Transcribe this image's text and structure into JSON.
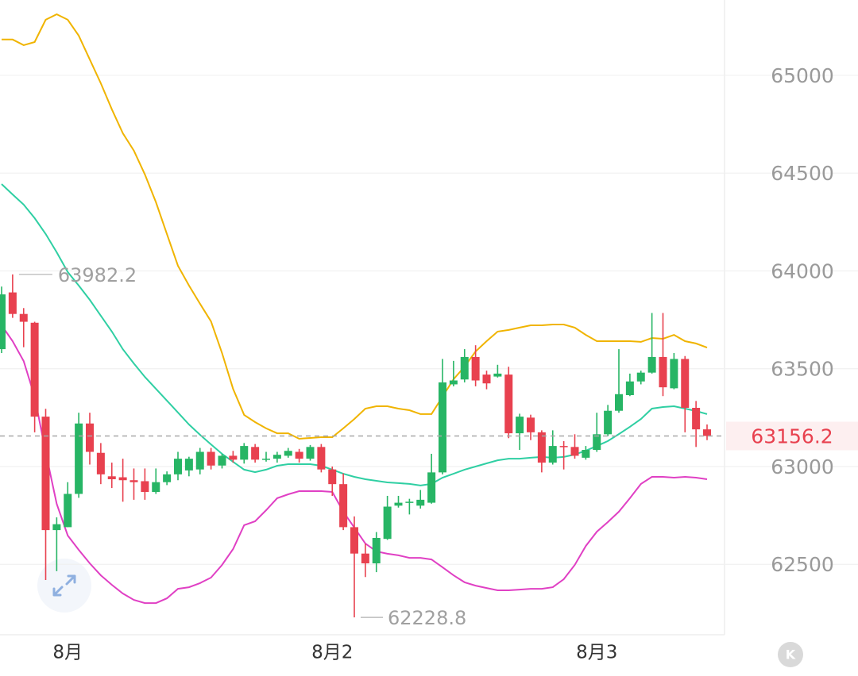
{
  "chart_data": {
    "type": "candlestick",
    "categories": [
      null,
      null,
      null,
      null,
      null,
      null,
      "8月",
      null,
      null,
      null,
      null,
      null,
      null,
      null,
      null,
      null,
      null,
      null,
      null,
      null,
      null,
      null,
      null,
      null,
      null,
      null,
      null,
      null,
      null,
      null,
      "8月2",
      null,
      null,
      null,
      null,
      null,
      null,
      null,
      null,
      null,
      null,
      null,
      null,
      null,
      null,
      null,
      null,
      null,
      null,
      null,
      null,
      null,
      null,
      null,
      "8月3",
      null,
      null,
      null,
      null,
      null,
      null,
      null,
      null,
      null,
      null
    ],
    "open": [
      63600,
      63890,
      63780,
      63735,
      63255,
      62675,
      62690,
      62860,
      63220,
      63070,
      62950,
      62945,
      62930,
      62925,
      62870,
      62920,
      62960,
      62980,
      62985,
      63075,
      63005,
      63055,
      63035,
      63100,
      63035,
      63040,
      63055,
      63075,
      63040,
      63100,
      62985,
      62910,
      62690,
      62555,
      62505,
      62630,
      62800,
      62815,
      62800,
      62815,
      62970,
      63420,
      63445,
      63560,
      63470,
      63460,
      63470,
      63170,
      63250,
      63175,
      63020,
      63105,
      63100,
      63045,
      63085,
      63165,
      63285,
      63365,
      63435,
      63480,
      63560,
      63400,
      63550,
      63300,
      63190
    ],
    "high": [
      63920,
      63982.2,
      63810,
      63740,
      63295,
      62740,
      62920,
      63275,
      63275,
      63120,
      63020,
      63040,
      62990,
      62990,
      62990,
      62975,
      63075,
      63050,
      63095,
      63095,
      63065,
      63080,
      63120,
      63115,
      63075,
      63075,
      63095,
      63090,
      63110,
      63115,
      63000,
      62965,
      62745,
      62605,
      62665,
      62850,
      62850,
      62835,
      62880,
      63065,
      63550,
      63540,
      63600,
      63620,
      63490,
      63520,
      63510,
      63270,
      63265,
      63185,
      63185,
      63130,
      63165,
      63105,
      63275,
      63315,
      63600,
      63475,
      63490,
      63785,
      63785,
      63580,
      63565,
      63335,
      63215
    ],
    "low": [
      63580,
      63760,
      63610,
      63175,
      62420,
      62465,
      62690,
      62840,
      63010,
      62910,
      62890,
      62820,
      62830,
      62830,
      62860,
      62905,
      62930,
      62950,
      62960,
      62985,
      62990,
      63020,
      63015,
      63020,
      63025,
      63020,
      63045,
      63020,
      63030,
      62970,
      62850,
      62675,
      62228.8,
      62435,
      62460,
      62625,
      62790,
      62755,
      62785,
      62810,
      62960,
      63410,
      63430,
      63410,
      63395,
      63455,
      63145,
      63085,
      63135,
      62970,
      63010,
      62985,
      63040,
      63035,
      63075,
      63155,
      63275,
      63360,
      63420,
      63475,
      63360,
      63395,
      63175,
      63100,
      63135
    ],
    "close": [
      63880,
      63780,
      63740,
      63255,
      62675,
      62705,
      62860,
      63220,
      63075,
      62960,
      62935,
      62930,
      62920,
      62870,
      62920,
      62960,
      63040,
      63040,
      63075,
      63005,
      63055,
      63035,
      63105,
      63035,
      63040,
      63060,
      63080,
      63040,
      63100,
      62985,
      62910,
      62690,
      62555,
      62505,
      62635,
      62795,
      62815,
      62820,
      62830,
      62970,
      63430,
      63440,
      63560,
      63440,
      63425,
      63475,
      63170,
      63255,
      63175,
      63020,
      63105,
      63100,
      63055,
      63085,
      63165,
      63285,
      63370,
      63435,
      63480,
      63560,
      63405,
      63550,
      63300,
      63190,
      63156.2
    ],
    "series": [
      {
        "color": "#f0b400",
        "values": [
          65183,
          65183,
          65154,
          65170,
          65284,
          65312,
          65284,
          65203,
          65081,
          64959,
          64826,
          64704,
          64615,
          64493,
          64351,
          64189,
          64026,
          63925,
          63832,
          63742,
          63580,
          63397,
          63264,
          63227,
          63195,
          63170,
          63170,
          63142,
          63146,
          63150,
          63150,
          63195,
          63243,
          63296,
          63308,
          63308,
          63296,
          63288,
          63268,
          63268,
          63357,
          63446,
          63511,
          63588,
          63641,
          63690,
          63698,
          63710,
          63722,
          63722,
          63726,
          63726,
          63710,
          63673,
          63641,
          63641,
          63641,
          63641,
          63637,
          63657,
          63653,
          63673,
          63641,
          63629,
          63608
        ]
      },
      {
        "color": "#2fcfa3",
        "values": [
          64444,
          64391,
          64339,
          64270,
          64189,
          64095,
          63994,
          63925,
          63852,
          63771,
          63690,
          63600,
          63527,
          63458,
          63397,
          63337,
          63276,
          63215,
          63162,
          63113,
          63065,
          63024,
          62984,
          62971,
          62984,
          63004,
          63012,
          63012,
          63012,
          63004,
          62984,
          62963,
          62947,
          62935,
          62927,
          62919,
          62915,
          62911,
          62903,
          62911,
          62943,
          62963,
          62984,
          63000,
          63016,
          63032,
          63040,
          63040,
          63045,
          63049,
          63045,
          63049,
          63061,
          63081,
          63105,
          63130,
          63166,
          63203,
          63243,
          63296,
          63304,
          63308,
          63296,
          63284,
          63268
        ]
      },
      {
        "color": "#e040c4",
        "values": [
          63722,
          63641,
          63539,
          63357,
          63073,
          62809,
          62647,
          62574,
          62505,
          62444,
          62395,
          62351,
          62318,
          62302,
          62302,
          62326,
          62375,
          62383,
          62404,
          62432,
          62497,
          62578,
          62700,
          62720,
          62777,
          62838,
          62858,
          62874,
          62874,
          62874,
          62870,
          62769,
          62688,
          62606,
          62566,
          62554,
          62546,
          62533,
          62533,
          62525,
          62485,
          62444,
          62408,
          62391,
          62379,
          62367,
          62367,
          62371,
          62375,
          62375,
          62383,
          62424,
          62497,
          62594,
          62667,
          62716,
          62769,
          62838,
          62911,
          62947,
          62947,
          62943,
          62947,
          62943,
          62935
        ]
      }
    ],
    "up_color": "#27b565",
    "down_color": "#e8414f",
    "ylim": [
      62140,
      65385
    ],
    "yticks": [
      62500,
      63000,
      63500,
      64000,
      64500,
      65000
    ],
    "grid": true
  }
}
